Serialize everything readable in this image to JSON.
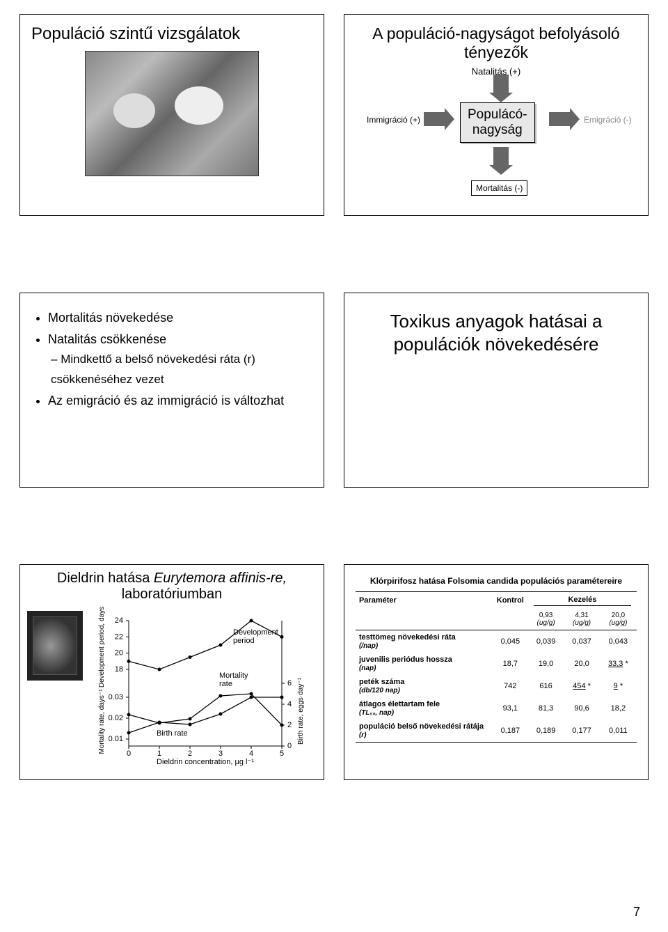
{
  "row1": {
    "left_title": "Populáció szintű vizsgálatok",
    "right_title": "A populáció-nagyságot befolyásoló tényezők",
    "natalitas": "Natalitás (+)",
    "immigracio": "Immigráció (+)",
    "emigracio": "Emigráció (-)",
    "center1": "Populácó-",
    "center2": "nagyság",
    "mortalitas": "Mortalitás (-)"
  },
  "row2": {
    "b1": "Mortalitás növekedése",
    "b2": "Natalitás csökkenése",
    "b2a": "Mindkettő a belső növekedési ráta (r) csökkenéséhez vezet",
    "b3": "Az emigráció és az immigráció is változhat",
    "right": "Toxikus anyagok hatásai a populációk növekedésére"
  },
  "row3": {
    "chart_title_pre": "Dieldrin hatása ",
    "chart_title_ital": "Eurytemora affinis-re,",
    "chart_title_post": "laboratóriumban",
    "chart": {
      "x_label": "Dieldrin concentration, µg l⁻¹",
      "x_ticks": [
        0,
        1,
        2,
        3,
        4,
        5
      ],
      "left_y_top_label": "Development period, days",
      "left_y_top_ticks": [
        18,
        20,
        22,
        24
      ],
      "left_y_bot_label": "Mortality rate, days⁻¹",
      "left_y_bot_ticks": [
        0.01,
        0.02,
        0.03
      ],
      "right_y_label": "Birth rate, eggs·day⁻¹",
      "right_y_ticks": [
        0,
        2,
        4,
        6
      ],
      "series": {
        "development": {
          "label": "Development period",
          "pts": [
            [
              0,
              19
            ],
            [
              1,
              18
            ],
            [
              2,
              19.5
            ],
            [
              3,
              21
            ],
            [
              4,
              24
            ],
            [
              5,
              22
            ]
          ]
        },
        "mortality": {
          "label": "Mortality rate",
          "pts": [
            [
              0,
              0.013
            ],
            [
              1,
              0.018
            ],
            [
              2,
              0.017
            ],
            [
              3,
              0.022
            ],
            [
              4,
              0.03
            ],
            [
              5,
              0.03
            ]
          ]
        },
        "birth": {
          "label": "Birth rate",
          "pts": [
            [
              0,
              3
            ],
            [
              1,
              2.2
            ],
            [
              2,
              2.6
            ],
            [
              3,
              4.8
            ],
            [
              4,
              5.0
            ],
            [
              5,
              2.0
            ]
          ]
        }
      },
      "colors": {
        "line": "#000000",
        "bg": "#ffffff"
      },
      "line_width": 1.3
    },
    "table": {
      "title": "Klórpirifosz hatása Folsomia candida populációs paramétereire",
      "head_param": "Paraméter",
      "head_ctrl": "Kontrol",
      "head_treat": "Kezelés",
      "dose_labels": [
        "0,93",
        "4,31",
        "20,0"
      ],
      "dose_unit": "(ug/g)",
      "rows": [
        {
          "name": "testtömeg növekedési ráta",
          "unit": "(/nap)",
          "vals": [
            "0,045",
            "0,039",
            "0,037",
            "0,043"
          ]
        },
        {
          "name": "juvenilis periódus hossza",
          "unit": "(nap)",
          "vals": [
            "18,7",
            "19,0",
            "20,0",
            "33,3"
          ],
          "flags": [
            0,
            0,
            0,
            3
          ]
        },
        {
          "name": "peték száma",
          "unit": "(db/120 nap)",
          "vals": [
            "742",
            "616",
            "454",
            "9"
          ],
          "flags": [
            0,
            0,
            3,
            3
          ]
        },
        {
          "name": "átlagos élettartam fele",
          "unit": "(TL₅₀, nap)",
          "vals": [
            "93,1",
            "81,3",
            "90,6",
            "18,2"
          ]
        },
        {
          "name": "populáció belső növekedési rátája",
          "unit": "(r)",
          "vals": [
            "0,187",
            "0,189",
            "0,177",
            "0,011"
          ]
        }
      ]
    }
  },
  "page_number": "7"
}
